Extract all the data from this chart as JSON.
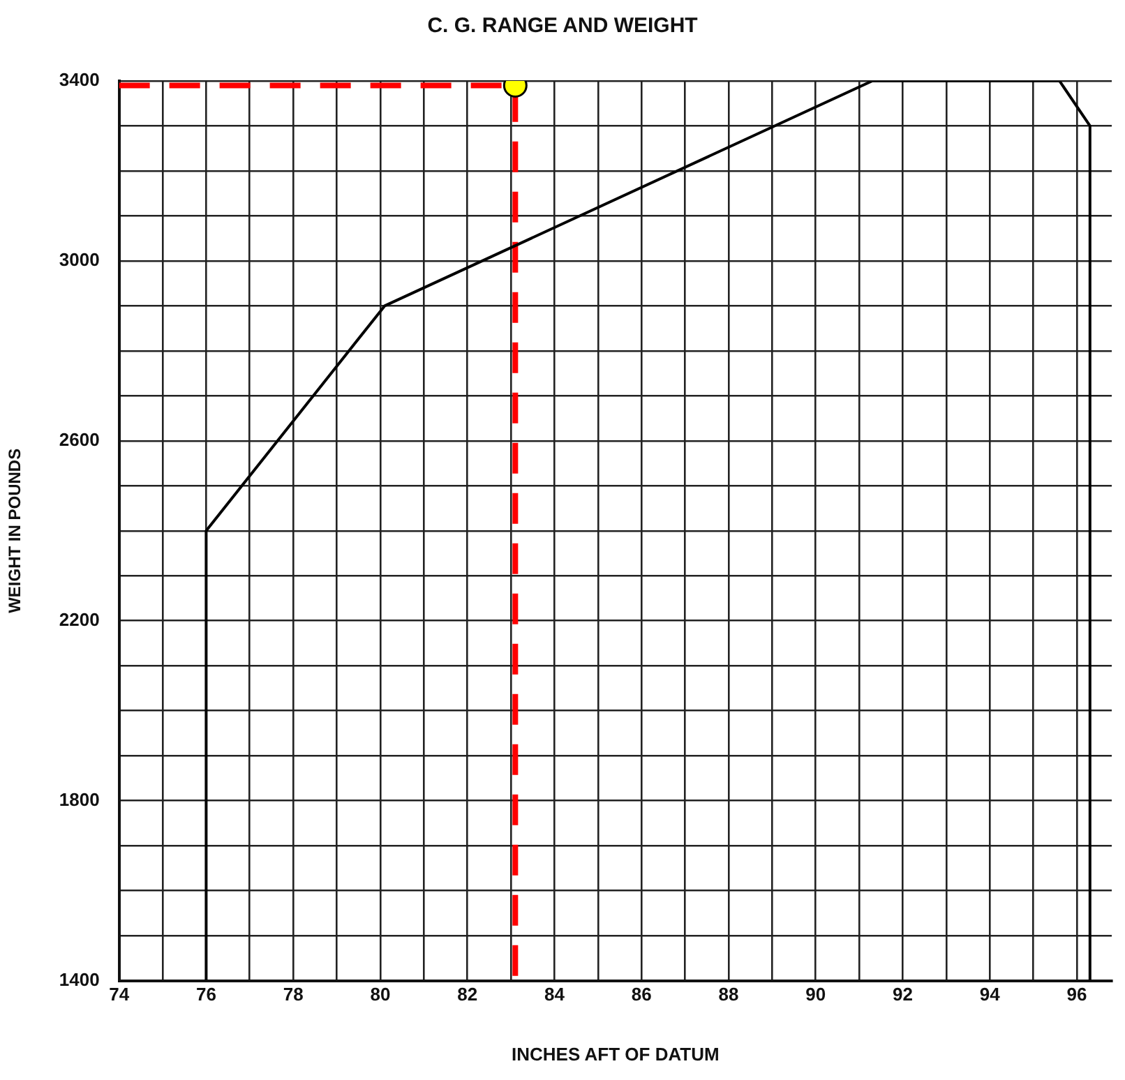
{
  "chart_data": {
    "type": "line",
    "title": "C. G. RANGE AND WEIGHT",
    "xlabel": "INCHES AFT OF DATUM",
    "ylabel": "WEIGHT IN POUNDS",
    "xlim": [
      74,
      96.8
    ],
    "xticks": [
      74,
      {
        "value": 75,
        "label": null
      },
      76,
      {
        "value": 77,
        "label": null
      },
      78,
      {
        "value": 79,
        "label": null
      },
      80,
      {
        "value": 81,
        "label": null
      },
      82,
      {
        "value": 83,
        "label": null
      },
      84,
      {
        "value": 85,
        "label": null
      },
      86,
      {
        "value": 87,
        "label": null
      },
      88,
      {
        "value": 89,
        "label": null
      },
      90,
      {
        "value": 91,
        "label": null
      },
      92,
      {
        "value": 93,
        "label": null
      },
      94,
      {
        "value": 95,
        "label": null
      },
      96
    ],
    "ylim": [
      1400,
      3400
    ],
    "yticks": [
      1400,
      {
        "value": 1500,
        "label": null
      },
      {
        "value": 1600,
        "label": null
      },
      {
        "value": 1700,
        "label": null
      },
      1800,
      {
        "value": 1900,
        "label": null
      },
      {
        "value": 2000,
        "label": null
      },
      {
        "value": 2100,
        "label": null
      },
      2200,
      {
        "value": 2300,
        "label": null
      },
      {
        "value": 2400,
        "label": null
      },
      {
        "value": 2500,
        "label": null
      },
      2600,
      {
        "value": 2700,
        "label": null
      },
      {
        "value": 2800,
        "label": null
      },
      {
        "value": 2900,
        "label": null
      },
      3000,
      {
        "value": 3100,
        "label": null
      },
      {
        "value": 3200,
        "label": null
      },
      {
        "value": 3300,
        "label": null
      },
      3400
    ],
    "grid": true,
    "series": [
      {
        "color": "#000000",
        "line_style": "solid",
        "marker": "none",
        "x": [
          76,
          76,
          80.1,
          91.3,
          95.6,
          96.3,
          96.3
        ],
        "values": [
          1400,
          2400,
          2900,
          3400,
          3400,
          3300,
          1400
        ]
      },
      {
        "color": "#ff0000",
        "line_style": "dashed",
        "marker": "none",
        "x": [
          74,
          83.1,
          83.1
        ],
        "values": [
          3390,
          3390,
          1400
        ]
      },
      {
        "type": "scatter",
        "color": "#ffff00",
        "marker": "circle",
        "x": [
          83.1
        ],
        "values": [
          3390
        ]
      }
    ]
  }
}
